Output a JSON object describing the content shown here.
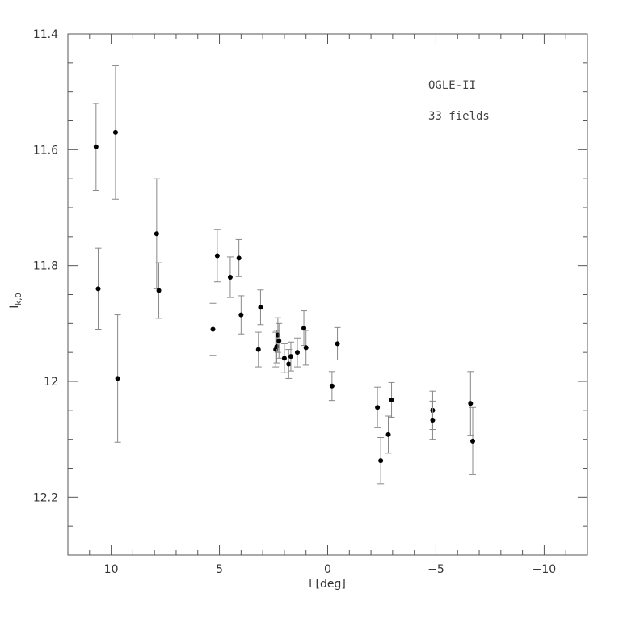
{
  "chart_data": {
    "type": "scatter",
    "title": "",
    "xlabel": "l [deg]",
    "ylabel": "I_k,0",
    "ylabel_main": "I",
    "ylabel_sub": "k,0",
    "xlim": [
      12,
      -12
    ],
    "ylim": [
      12.3,
      11.4
    ],
    "y_inverted": true,
    "x_inverted": true,
    "xticks": [
      10,
      5,
      0,
      -5,
      -10
    ],
    "xtick_labels": [
      "10",
      "5",
      "0",
      "−5",
      "−10"
    ],
    "yticks": [
      11.4,
      11.6,
      11.8,
      12,
      12.2
    ],
    "ytick_labels": [
      "11.4",
      "11.6",
      "11.8",
      "12",
      "12.2"
    ],
    "grid": false,
    "annotations": [
      "OGLE-II",
      "33 fields"
    ],
    "series": [
      {
        "points": [
          {
            "x": 10.7,
            "y": 11.595,
            "err": 0.075
          },
          {
            "x": 9.8,
            "y": 11.57,
            "err": 0.115
          },
          {
            "x": 10.6,
            "y": 11.84,
            "err": 0.07
          },
          {
            "x": 9.7,
            "y": 11.995,
            "err": 0.11
          },
          {
            "x": 7.9,
            "y": 11.745,
            "err": 0.095
          },
          {
            "x": 7.8,
            "y": 11.843,
            "err": 0.048
          },
          {
            "x": 5.1,
            "y": 11.783,
            "err": 0.045
          },
          {
            "x": 5.3,
            "y": 11.91,
            "err": 0.045
          },
          {
            "x": 4.5,
            "y": 11.82,
            "err": 0.035
          },
          {
            "x": 4.1,
            "y": 11.787,
            "err": 0.032
          },
          {
            "x": 4.0,
            "y": 11.885,
            "err": 0.033
          },
          {
            "x": 3.1,
            "y": 11.872,
            "err": 0.03
          },
          {
            "x": 3.2,
            "y": 11.945,
            "err": 0.03
          },
          {
            "x": 2.4,
            "y": 11.945,
            "err": 0.03
          },
          {
            "x": 2.35,
            "y": 11.94,
            "err": 0.028
          },
          {
            "x": 2.3,
            "y": 11.92,
            "err": 0.03
          },
          {
            "x": 2.25,
            "y": 11.93,
            "err": 0.03
          },
          {
            "x": 2.0,
            "y": 11.96,
            "err": 0.025
          },
          {
            "x": 1.8,
            "y": 11.97,
            "err": 0.025
          },
          {
            "x": 1.7,
            "y": 11.957,
            "err": 0.025
          },
          {
            "x": 1.4,
            "y": 11.95,
            "err": 0.025
          },
          {
            "x": 1.1,
            "y": 11.908,
            "err": 0.03
          },
          {
            "x": 1.0,
            "y": 11.942,
            "err": 0.03
          },
          {
            "x": -0.2,
            "y": 12.008,
            "err": 0.025
          },
          {
            "x": -0.45,
            "y": 11.935,
            "err": 0.028
          },
          {
            "x": -2.3,
            "y": 12.045,
            "err": 0.035
          },
          {
            "x": -2.45,
            "y": 12.137,
            "err": 0.04
          },
          {
            "x": -2.8,
            "y": 12.092,
            "err": 0.032
          },
          {
            "x": -2.95,
            "y": 12.032,
            "err": 0.03
          },
          {
            "x": -4.85,
            "y": 12.05,
            "err": 0.033
          },
          {
            "x": -4.85,
            "y": 12.067,
            "err": 0.033
          },
          {
            "x": -6.6,
            "y": 12.038,
            "err": 0.055
          },
          {
            "x": -6.7,
            "y": 12.103,
            "err": 0.058
          }
        ]
      }
    ]
  }
}
